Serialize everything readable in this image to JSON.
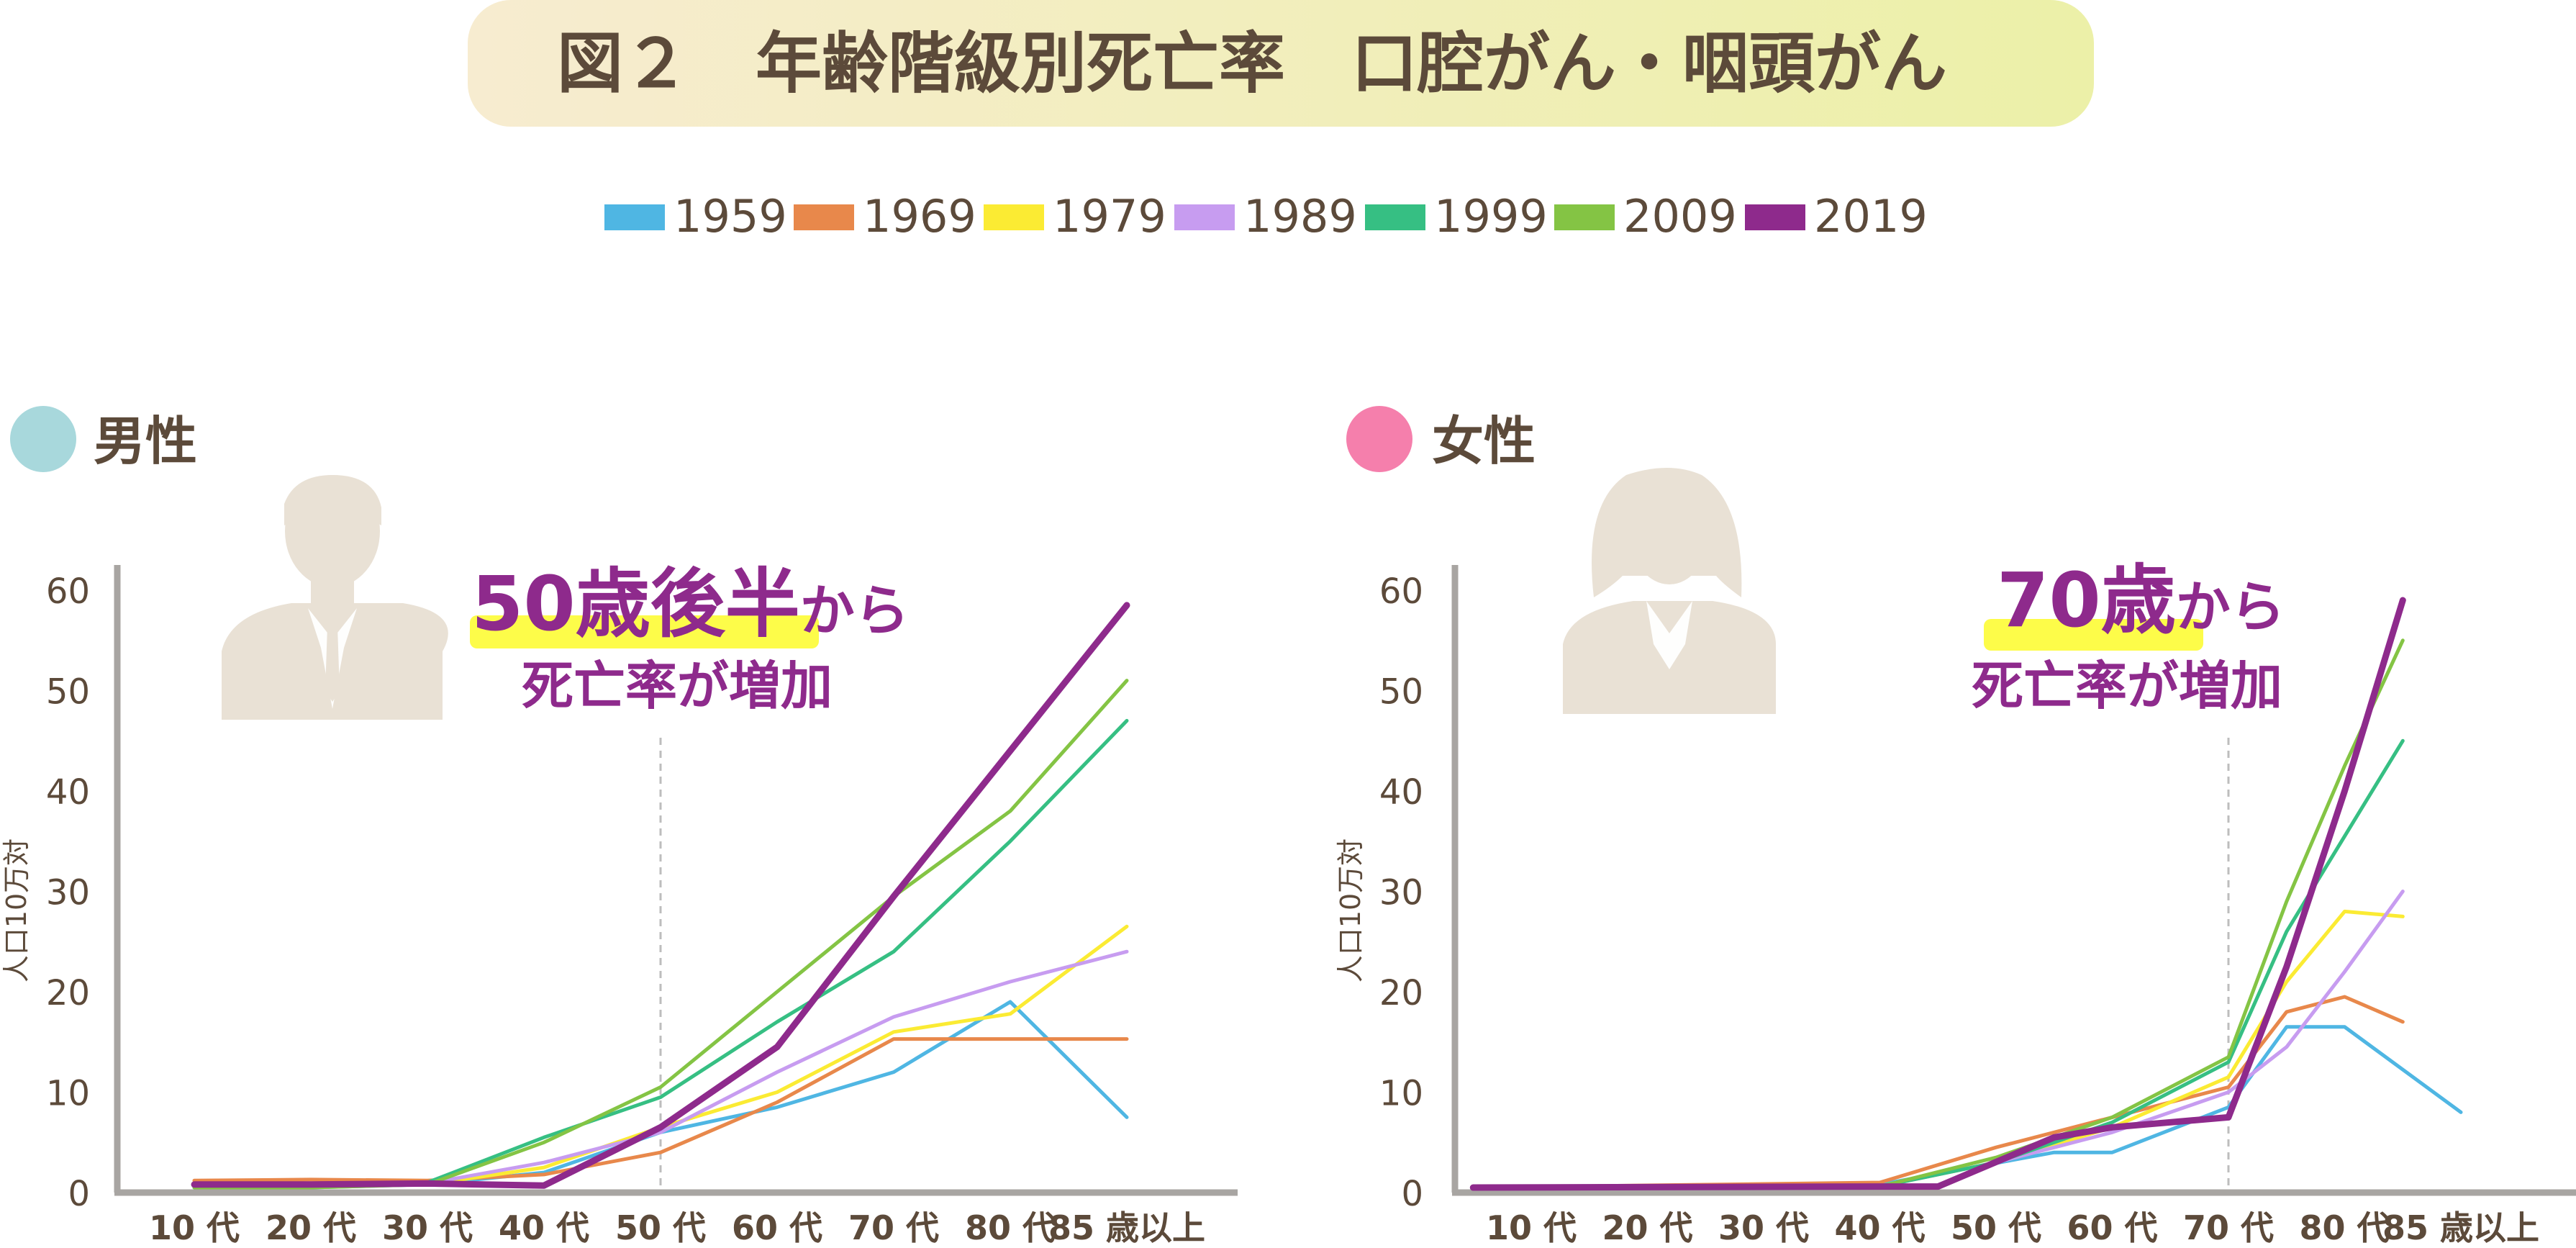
{
  "title": "図２　年齢階級別死亡率　口腔がん・咽頭がん",
  "colors": {
    "text": "#5c4a3a",
    "axis": "#a8a5a2",
    "title_bg_left": "#f7ecd0",
    "title_bg_right": "#ecf0a8",
    "male_dot": "#a8d8dc",
    "female_dot": "#f57fac",
    "silhouette": "#e9e1d5",
    "annotation_purple": "#8e2a8c",
    "highlight_yellow": "#fdfc49"
  },
  "legend": [
    {
      "label": "1959",
      "color": "#4fb6e3"
    },
    {
      "label": "1969",
      "color": "#e8884b"
    },
    {
      "label": "1979",
      "color": "#fbeb33"
    },
    {
      "label": "1989",
      "color": "#c79cf0"
    },
    {
      "label": "1999",
      "color": "#36bf83"
    },
    {
      "label": "2009",
      "color": "#84c444"
    },
    {
      "label": "2019",
      "color": "#8e2a8c"
    }
  ],
  "panels": [
    {
      "label": "男性",
      "icon": "male-silhouette-icon",
      "annotation": {
        "big1": "50歳後半",
        "small1": "から",
        "line2": "死亡率が増加"
      }
    },
    {
      "label": "女性",
      "icon": "female-silhouette-icon",
      "annotation": {
        "big1": "70歳",
        "small1": "から",
        "line2": "死亡率が増加"
      }
    }
  ],
  "chart_data": [
    {
      "type": "line",
      "title": "男性",
      "ylabel": "人口10万対",
      "ylim": [
        0,
        60
      ],
      "yticks": [
        "0",
        "10",
        "20",
        "30",
        "40",
        "50",
        "60"
      ],
      "categories": [
        "10 代",
        "20 代",
        "30 代",
        "40 代",
        "50 代",
        "60 代",
        "70 代",
        "80 代",
        "85 歳以上"
      ],
      "marker_line_at": "50 代",
      "series": [
        {
          "name": "1959",
          "color": "#4fb6e3",
          "width": 5,
          "x": [
            0,
            1,
            2,
            3,
            4,
            5,
            6,
            7,
            8
          ],
          "values": [
            0.5,
            0.5,
            0.8,
            2,
            6,
            8.5,
            12,
            19,
            7.5
          ]
        },
        {
          "name": "1969",
          "color": "#e8884b",
          "width": 5,
          "x": [
            0,
            1,
            2,
            3,
            4,
            5,
            6,
            7,
            8
          ],
          "values": [
            1.2,
            1.3,
            1.2,
            1.8,
            4,
            9,
            15.3,
            15.3,
            15.3
          ]
        },
        {
          "name": "1979",
          "color": "#fbeb33",
          "width": 5,
          "x": [
            0,
            1,
            2,
            3,
            4,
            5,
            6,
            7,
            8
          ],
          "values": [
            0.8,
            0.8,
            0.8,
            2.5,
            6.5,
            10,
            16,
            17.8,
            26.5
          ]
        },
        {
          "name": "1989",
          "color": "#c79cf0",
          "width": 5,
          "x": [
            0,
            1,
            2,
            3,
            4,
            5,
            6,
            7,
            8
          ],
          "values": [
            0.6,
            0.6,
            0.9,
            3,
            6,
            12,
            17.5,
            21,
            24
          ]
        },
        {
          "name": "1999",
          "color": "#36bf83",
          "width": 5,
          "x": [
            0,
            1,
            2,
            3,
            4,
            5,
            6,
            7,
            8
          ],
          "values": [
            0.5,
            0.5,
            1,
            5.5,
            9.5,
            17,
            24,
            35,
            47
          ]
        },
        {
          "name": "2009",
          "color": "#84c444",
          "width": 5,
          "x": [
            0,
            1,
            2,
            3,
            4,
            5,
            6,
            7,
            8
          ],
          "values": [
            0.5,
            0.5,
            0.8,
            5,
            10.5,
            20,
            29.5,
            38,
            51
          ]
        },
        {
          "name": "2019",
          "color": "#8e2a8c",
          "width": 9,
          "x": [
            0,
            1,
            2,
            3,
            4,
            5,
            6,
            7,
            8
          ],
          "values": [
            0.8,
            0.8,
            0.9,
            0.7,
            6.5,
            14.5,
            29.5,
            44,
            58.5
          ]
        }
      ]
    },
    {
      "type": "line",
      "title": "女性",
      "ylabel": "人口10万対",
      "ylim": [
        0,
        60
      ],
      "yticks": [
        "0",
        "10",
        "20",
        "30",
        "40",
        "50",
        "60"
      ],
      "categories": [
        "10 代",
        "20 代",
        "30 代",
        "40 代",
        "50 代",
        "60 代",
        "70 代",
        "80 代",
        "85 歳以上"
      ],
      "marker_line_at": "70 代",
      "series": [
        {
          "name": "1959",
          "color": "#4fb6e3",
          "width": 5,
          "x": [
            -0.5,
            3,
            4.5,
            5,
            6,
            6.5,
            7,
            8
          ],
          "values": [
            0.5,
            0.8,
            4,
            4,
            8.5,
            16.5,
            16.5,
            8
          ]
        },
        {
          "name": "1969",
          "color": "#e8884b",
          "width": 5,
          "x": [
            -0.5,
            3,
            4,
            5,
            6,
            6.5,
            7,
            7.5
          ],
          "values": [
            0.5,
            1,
            4.5,
            7.5,
            10.5,
            18,
            19.5,
            17
          ]
        },
        {
          "name": "1979",
          "color": "#fbeb33",
          "width": 5,
          "x": [
            -0.5,
            3,
            4,
            5,
            6,
            6.5,
            7,
            7.5
          ],
          "values": [
            0.5,
            0.6,
            3,
            6.5,
            11.5,
            21,
            28,
            27.5
          ]
        },
        {
          "name": "1989",
          "color": "#c79cf0",
          "width": 5,
          "x": [
            -0.5,
            3,
            4,
            5,
            6,
            6.5,
            7,
            7.5
          ],
          "values": [
            0.5,
            0.6,
            3,
            6,
            10,
            14.5,
            22,
            30
          ]
        },
        {
          "name": "1999",
          "color": "#36bf83",
          "width": 5,
          "x": [
            -0.5,
            3,
            4,
            5,
            6,
            6.5,
            7,
            7.5
          ],
          "values": [
            0.5,
            0.6,
            3,
            7,
            13,
            26,
            35.5,
            45
          ]
        },
        {
          "name": "2009",
          "color": "#84c444",
          "width": 5,
          "x": [
            -0.5,
            3,
            4,
            5,
            6,
            6.5,
            7,
            7.5
          ],
          "values": [
            0.5,
            0.6,
            3.5,
            7.5,
            13.5,
            29,
            42.5,
            55
          ]
        },
        {
          "name": "2019",
          "color": "#8e2a8c",
          "width": 9,
          "x": [
            -0.5,
            3,
            3.5,
            4.5,
            5,
            6,
            6.5,
            7,
            7.5
          ],
          "values": [
            0.5,
            0.6,
            0.6,
            5.5,
            6.5,
            7.5,
            22.5,
            40,
            59
          ]
        }
      ]
    }
  ]
}
